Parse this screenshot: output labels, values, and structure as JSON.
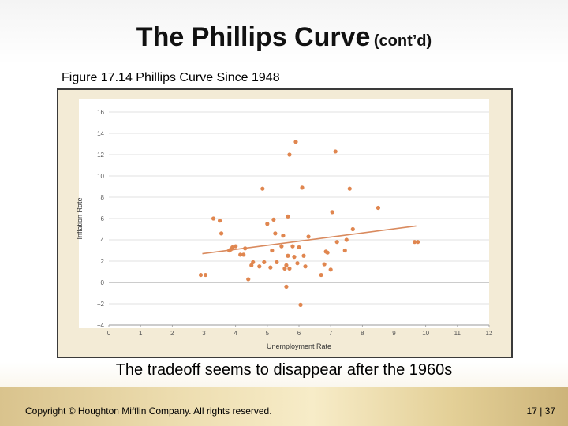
{
  "slide": {
    "title_main": "The Phillips Curve",
    "title_sub": "(cont’d)",
    "figure_caption": "Figure 17.14 Phillips Curve Since 1948",
    "note": "The tradeoff seems to disappear after the 1960s",
    "copyright": "Copyright © Houghton Mifflin Company. All rights reserved.",
    "page_number": "17 | 37"
  },
  "colors": {
    "points": "#e0864f",
    "trend_line": "#d98a5e",
    "grid": "#d8d8d8",
    "figure_background": "#f3ebd6"
  },
  "chart_data": {
    "type": "scatter",
    "title": "",
    "xlabel": "Unemployment Rate",
    "ylabel": "Inflation Rate",
    "xlim": [
      0,
      12
    ],
    "ylim": [
      -4,
      16
    ],
    "x_ticks": [
      0,
      1,
      2,
      3,
      4,
      5,
      6,
      7,
      8,
      9,
      10,
      11,
      12
    ],
    "y_ticks": [
      -4,
      -2,
      0,
      2,
      4,
      6,
      8,
      10,
      12,
      14,
      16
    ],
    "y_tick_labels": [
      "−4",
      "−2",
      "0",
      "2",
      "4",
      "6",
      "8",
      "10",
      "12",
      "14",
      "16"
    ],
    "grid": "horizontal",
    "points": [
      [
        2.9,
        0.7
      ],
      [
        3.05,
        0.7
      ],
      [
        3.3,
        6.0
      ],
      [
        3.5,
        5.8
      ],
      [
        3.55,
        4.6
      ],
      [
        3.8,
        3.0
      ],
      [
        3.85,
        3.1
      ],
      [
        3.9,
        3.3
      ],
      [
        4.0,
        3.4
      ],
      [
        4.15,
        2.6
      ],
      [
        4.25,
        2.6
      ],
      [
        4.3,
        3.2
      ],
      [
        4.4,
        0.3
      ],
      [
        4.5,
        1.6
      ],
      [
        4.55,
        1.9
      ],
      [
        4.75,
        1.5
      ],
      [
        4.85,
        8.8
      ],
      [
        4.9,
        1.9
      ],
      [
        5.0,
        5.5
      ],
      [
        5.1,
        1.4
      ],
      [
        5.15,
        3.0
      ],
      [
        5.2,
        5.9
      ],
      [
        5.25,
        4.6
      ],
      [
        5.3,
        1.9
      ],
      [
        5.45,
        3.4
      ],
      [
        5.5,
        4.4
      ],
      [
        5.55,
        1.3
      ],
      [
        5.6,
        1.6
      ],
      [
        5.6,
        -0.4
      ],
      [
        5.65,
        2.5
      ],
      [
        5.65,
        6.2
      ],
      [
        5.7,
        1.3
      ],
      [
        5.7,
        12.0
      ],
      [
        5.8,
        3.4
      ],
      [
        5.85,
        2.4
      ],
      [
        5.9,
        13.2
      ],
      [
        5.95,
        1.8
      ],
      [
        6.0,
        3.3
      ],
      [
        6.05,
        -2.1
      ],
      [
        6.1,
        8.9
      ],
      [
        6.15,
        2.5
      ],
      [
        6.2,
        1.5
      ],
      [
        6.3,
        4.3
      ],
      [
        6.7,
        0.7
      ],
      [
        6.8,
        1.7
      ],
      [
        6.85,
        2.9
      ],
      [
        6.9,
        2.8
      ],
      [
        7.0,
        1.2
      ],
      [
        7.05,
        6.6
      ],
      [
        7.15,
        12.3
      ],
      [
        7.2,
        3.8
      ],
      [
        7.45,
        3.0
      ],
      [
        7.5,
        4.0
      ],
      [
        7.6,
        8.8
      ],
      [
        7.7,
        5.0
      ],
      [
        8.5,
        7.0
      ],
      [
        9.65,
        3.8
      ],
      [
        9.75,
        3.8
      ]
    ],
    "trend_line": [
      [
        2.95,
        2.7
      ],
      [
        9.7,
        5.3
      ]
    ]
  }
}
